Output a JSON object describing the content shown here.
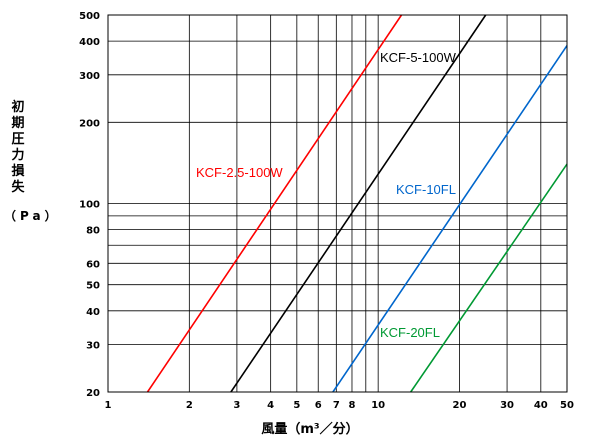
{
  "chart_data": {
    "type": "line",
    "title": "",
    "xlabel": "風量（m³／分）",
    "ylabel": "初期圧力損失",
    "ylabel_unit": "（Pa）",
    "x_scale": "log",
    "y_scale": "log",
    "xlim": [
      1,
      50
    ],
    "ylim": [
      20,
      500
    ],
    "grid": true,
    "x_ticks": [
      1,
      2,
      3,
      4,
      5,
      6,
      7,
      8,
      9,
      10,
      20,
      30,
      40,
      50
    ],
    "x_tick_labels": [
      "1",
      "2",
      "3",
      "4",
      "5",
      "6",
      "7",
      "8",
      "10",
      "20",
      "30",
      "40",
      "50"
    ],
    "y_ticks": [
      20,
      30,
      40,
      50,
      60,
      70,
      80,
      90,
      100,
      200,
      300,
      400,
      500
    ],
    "y_tick_labels": [
      "20",
      "30",
      "40",
      "50",
      "60",
      "80",
      "100",
      "200",
      "300",
      "400",
      "500"
    ],
    "series": [
      {
        "name": "KCF-2.5-100W",
        "color": "#ff0000",
        "x": [
          1.4,
          12.2
        ],
        "y": [
          20,
          500
        ]
      },
      {
        "name": "KCF-5-100W",
        "color": "#000000",
        "x": [
          2.85,
          25.0
        ],
        "y": [
          20,
          500
        ]
      },
      {
        "name": "KCF-10FL",
        "color": "#0066cc",
        "x": [
          6.8,
          50.0
        ],
        "y": [
          20,
          385
        ]
      },
      {
        "name": "KCF-20FL",
        "color": "#009933",
        "x": [
          13.2,
          50.0
        ],
        "y": [
          20,
          140
        ]
      }
    ],
    "annotations": [
      {
        "text": "KCF-2.5-100W",
        "color": "#ff0000"
      },
      {
        "text": "KCF-5-100W",
        "color": "#000000"
      },
      {
        "text": "KCF-10FL",
        "color": "#0066cc"
      },
      {
        "text": "KCF-20FL",
        "color": "#009933"
      }
    ]
  }
}
